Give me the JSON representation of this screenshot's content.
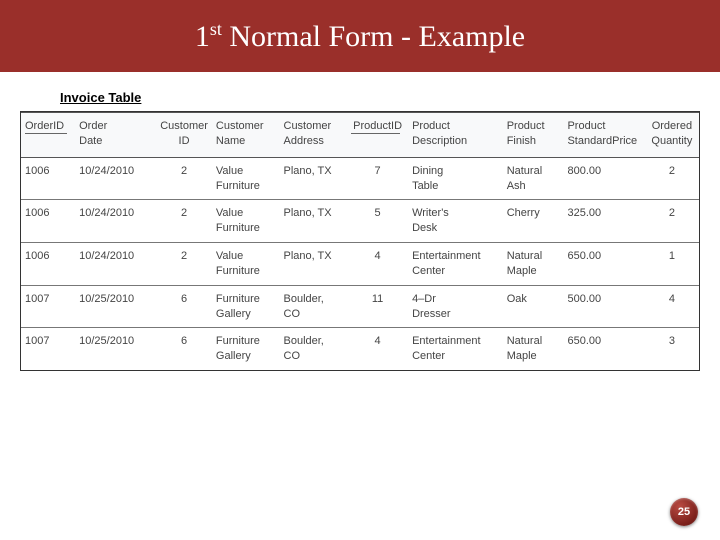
{
  "colors": {
    "header_bg": "#9a2f2a",
    "badge_bg": "#7a1f1a",
    "text": "#444444"
  },
  "title": {
    "pre": "1",
    "sup": "st",
    "rest": " Normal Form - Example"
  },
  "subtitle": "Invoice Table",
  "page_number": "25",
  "table": {
    "columns": [
      {
        "l1": "OrderID",
        "l2": "",
        "pk": true
      },
      {
        "l1": "Order",
        "l2": "Date"
      },
      {
        "l1": "Customer",
        "l2": "ID"
      },
      {
        "l1": "Customer",
        "l2": "Name"
      },
      {
        "l1": "Customer",
        "l2": "Address"
      },
      {
        "l1": "ProductID",
        "l2": "",
        "pk": true
      },
      {
        "l1": "Product",
        "l2": "Description"
      },
      {
        "l1": "Product",
        "l2": "Finish"
      },
      {
        "l1": "Product",
        "l2": "StandardPrice"
      },
      {
        "l1": "Ordered",
        "l2": "Quantity"
      }
    ],
    "rows": [
      {
        "oid": "1006",
        "date": "10/24/2010",
        "cid": "2",
        "cname_l1": "Value",
        "cname_l2": "Furniture",
        "addr_l1": "Plano, TX",
        "addr_l2": "",
        "pid": "7",
        "pdesc_l1": "Dining",
        "pdesc_l2": "Table",
        "fin_l1": "Natural",
        "fin_l2": "Ash",
        "price": "800.00",
        "qty": "2"
      },
      {
        "oid": "1006",
        "date": "10/24/2010",
        "cid": "2",
        "cname_l1": "Value",
        "cname_l2": "Furniture",
        "addr_l1": "Plano, TX",
        "addr_l2": "",
        "pid": "5",
        "pdesc_l1": "Writer's",
        "pdesc_l2": "Desk",
        "fin_l1": "Cherry",
        "fin_l2": "",
        "price": "325.00",
        "qty": "2"
      },
      {
        "oid": "1006",
        "date": "10/24/2010",
        "cid": "2",
        "cname_l1": "Value",
        "cname_l2": "Furniture",
        "addr_l1": "Plano, TX",
        "addr_l2": "",
        "pid": "4",
        "pdesc_l1": "Entertainment",
        "pdesc_l2": "Center",
        "fin_l1": "Natural",
        "fin_l2": "Maple",
        "price": "650.00",
        "qty": "1"
      },
      {
        "oid": "1007",
        "date": "10/25/2010",
        "cid": "6",
        "cname_l1": "Furniture",
        "cname_l2": "Gallery",
        "addr_l1": "Boulder,",
        "addr_l2": "CO",
        "pid": "11",
        "pdesc_l1": "4–Dr",
        "pdesc_l2": "Dresser",
        "fin_l1": "Oak",
        "fin_l2": "",
        "price": "500.00",
        "qty": "4"
      },
      {
        "oid": "1007",
        "date": "10/25/2010",
        "cid": "6",
        "cname_l1": "Furniture",
        "cname_l2": "Gallery",
        "addr_l1": "Boulder,",
        "addr_l2": "CO",
        "pid": "4",
        "pdesc_l1": "Entertainment",
        "pdesc_l2": "Center",
        "fin_l1": "Natural",
        "fin_l2": "Maple",
        "price": "650.00",
        "qty": "3"
      }
    ]
  }
}
